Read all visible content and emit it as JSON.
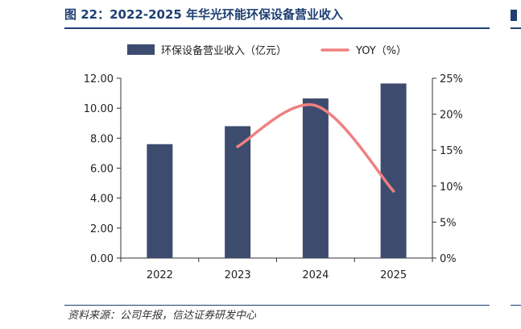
{
  "figure": {
    "title": "图 22：2022-2025 年华光环能环保设备营业收入",
    "source": "资料来源：公司年报，信达证券研发中心"
  },
  "chart_data": {
    "type": "bar+line",
    "categories": [
      "2022",
      "2023",
      "2024",
      "2025"
    ],
    "series": [
      {
        "name": "环保设备营业收入（亿元）",
        "type": "bar",
        "axis": "left",
        "color": "#3d4c6e",
        "values": [
          7.6,
          8.8,
          10.65,
          11.65
        ]
      },
      {
        "name": "YOY（%）",
        "type": "line",
        "axis": "right",
        "color": "#f08080",
        "values": [
          null,
          15.5,
          21.2,
          9.3
        ]
      }
    ],
    "y_left": {
      "min": 0,
      "max": 12,
      "step": 2,
      "tick_labels": [
        "0.00",
        "2.00",
        "4.00",
        "6.00",
        "8.00",
        "10.00",
        "12.00"
      ]
    },
    "y_right": {
      "min": 0,
      "max": 25,
      "step": 5,
      "tick_labels": [
        "0%",
        "5%",
        "10%",
        "15%",
        "20%",
        "25%"
      ]
    },
    "legend_position": "top",
    "grid": false
  }
}
